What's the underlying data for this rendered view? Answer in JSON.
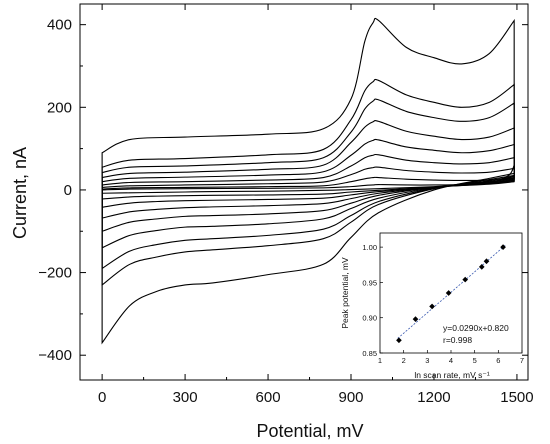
{
  "chart_data": [
    {
      "type": "line",
      "title": "",
      "xlabel": "Potential, mV",
      "ylabel": "Current, nA",
      "xlim": [
        -80,
        1540
      ],
      "ylim": [
        -460,
        450
      ],
      "xticks": [
        "0",
        "300",
        "600",
        "900",
        "1200",
        "1500"
      ],
      "yticks": [
        "400",
        "200",
        "0",
        "−200",
        "−400"
      ],
      "xtick_values": [
        0,
        300,
        600,
        900,
        1200,
        1500
      ],
      "ytick_values": [
        400,
        200,
        0,
        -200,
        -400
      ],
      "series": [
        {
          "forward": [
            [
              0,
              90
            ],
            [
              100,
              122
            ],
            [
              300,
              128
            ],
            [
              600,
              135
            ],
            [
              800,
              148
            ],
            [
              900,
              220
            ],
            [
              950,
              360
            ],
            [
              980,
              405
            ],
            [
              1000,
              410
            ],
            [
              1100,
              345
            ],
            [
              1200,
              320
            ],
            [
              1300,
              305
            ],
            [
              1400,
              330
            ],
            [
              1490,
              410
            ]
          ],
          "reverse": [
            [
              1490,
              40
            ],
            [
              1400,
              28
            ],
            [
              1200,
              0
            ],
            [
              1000,
              -55
            ],
            [
              900,
              -115
            ],
            [
              800,
              -180
            ],
            [
              600,
              -205
            ],
            [
              400,
              -225
            ],
            [
              300,
              -230
            ],
            [
              200,
              -245
            ],
            [
              100,
              -280
            ],
            [
              0,
              -370
            ]
          ]
        },
        {
          "forward": [
            [
              0,
              55
            ],
            [
              100,
              72
            ],
            [
              300,
              76
            ],
            [
              600,
              85
            ],
            [
              800,
              98
            ],
            [
              900,
              170
            ],
            [
              950,
              240
            ],
            [
              980,
              262
            ],
            [
              1000,
              265
            ],
            [
              1100,
              230
            ],
            [
              1200,
              212
            ],
            [
              1300,
              200
            ],
            [
              1400,
              212
            ],
            [
              1490,
              255
            ]
          ],
          "reverse": [
            [
              1490,
              35
            ],
            [
              1400,
              25
            ],
            [
              1200,
              3
            ],
            [
              1000,
              -35
            ],
            [
              900,
              -78
            ],
            [
              800,
              -118
            ],
            [
              600,
              -135
            ],
            [
              400,
              -145
            ],
            [
              300,
              -150
            ],
            [
              200,
              -162
            ],
            [
              100,
              -180
            ],
            [
              0,
              -230
            ]
          ]
        },
        {
          "forward": [
            [
              0,
              42
            ],
            [
              100,
              55
            ],
            [
              300,
              58
            ],
            [
              600,
              66
            ],
            [
              800,
              78
            ],
            [
              900,
              140
            ],
            [
              950,
              196
            ],
            [
              980,
              215
            ],
            [
              1000,
              218
            ],
            [
              1100,
              190
            ],
            [
              1200,
              175
            ],
            [
              1300,
              166
            ],
            [
              1400,
              175
            ],
            [
              1490,
              210
            ]
          ],
          "reverse": [
            [
              1490,
              33
            ],
            [
              1400,
              22
            ],
            [
              1200,
              4
            ],
            [
              1000,
              -28
            ],
            [
              900,
              -62
            ],
            [
              800,
              -95
            ],
            [
              600,
              -110
            ],
            [
              400,
              -118
            ],
            [
              300,
              -122
            ],
            [
              200,
              -132
            ],
            [
              100,
              -148
            ],
            [
              0,
              -190
            ]
          ]
        },
        {
          "forward": [
            [
              0,
              30
            ],
            [
              100,
              40
            ],
            [
              300,
              43
            ],
            [
              600,
              50
            ],
            [
              800,
              60
            ],
            [
              900,
              115
            ],
            [
              950,
              152
            ],
            [
              980,
              165
            ],
            [
              1000,
              166
            ],
            [
              1100,
              142
            ],
            [
              1200,
              130
            ],
            [
              1300,
              122
            ],
            [
              1400,
              128
            ],
            [
              1490,
              150
            ]
          ],
          "reverse": [
            [
              1490,
              30
            ],
            [
              1400,
              20
            ],
            [
              1200,
              5
            ],
            [
              1000,
              -20
            ],
            [
              900,
              -45
            ],
            [
              800,
              -70
            ],
            [
              600,
              -82
            ],
            [
              400,
              -88
            ],
            [
              300,
              -90
            ],
            [
              200,
              -98
            ],
            [
              100,
              -110
            ],
            [
              0,
              -140
            ]
          ]
        },
        {
          "forward": [
            [
              0,
              20
            ],
            [
              100,
              28
            ],
            [
              300,
              31
            ],
            [
              600,
              36
            ],
            [
              800,
              44
            ],
            [
              900,
              84
            ],
            [
              950,
              111
            ],
            [
              980,
              120
            ],
            [
              1000,
              121
            ],
            [
              1100,
              104
            ],
            [
              1200,
              96
            ],
            [
              1300,
              90
            ],
            [
              1400,
              95
            ],
            [
              1490,
              110
            ]
          ],
          "reverse": [
            [
              1490,
              28
            ],
            [
              1400,
              19
            ],
            [
              1200,
              6
            ],
            [
              1000,
              -13
            ],
            [
              900,
              -32
            ],
            [
              800,
              -50
            ],
            [
              600,
              -58
            ],
            [
              400,
              -62
            ],
            [
              300,
              -64
            ],
            [
              200,
              -70
            ],
            [
              100,
              -78
            ],
            [
              0,
              -100
            ]
          ]
        },
        {
          "forward": [
            [
              0,
              12
            ],
            [
              100,
              18
            ],
            [
              300,
              20
            ],
            [
              600,
              24
            ],
            [
              800,
              30
            ],
            [
              900,
              58
            ],
            [
              950,
              78
            ],
            [
              980,
              84
            ],
            [
              1000,
              85
            ],
            [
              1100,
              72
            ],
            [
              1200,
              66
            ],
            [
              1300,
              63
            ],
            [
              1400,
              66
            ],
            [
              1490,
              78
            ]
          ],
          "reverse": [
            [
              1490,
              26
            ],
            [
              1400,
              17
            ],
            [
              1200,
              6
            ],
            [
              1000,
              -8
            ],
            [
              900,
              -21
            ],
            [
              800,
              -33
            ],
            [
              600,
              -38
            ],
            [
              400,
              -41
            ],
            [
              300,
              -43
            ],
            [
              200,
              -47
            ],
            [
              100,
              -53
            ],
            [
              0,
              -68
            ]
          ]
        },
        {
          "forward": [
            [
              0,
              6
            ],
            [
              100,
              10
            ],
            [
              300,
              12
            ],
            [
              600,
              15
            ],
            [
              800,
              19
            ],
            [
              900,
              37
            ],
            [
              950,
              50
            ],
            [
              980,
              54
            ],
            [
              1000,
              55
            ],
            [
              1100,
              47
            ],
            [
              1200,
              43
            ],
            [
              1300,
              41
            ],
            [
              1400,
              43
            ],
            [
              1490,
              52
            ]
          ],
          "reverse": [
            [
              1490,
              24
            ],
            [
              1400,
              16
            ],
            [
              1200,
              7
            ],
            [
              1000,
              -4
            ],
            [
              900,
              -12
            ],
            [
              800,
              -20
            ],
            [
              600,
              -23
            ],
            [
              400,
              -25
            ],
            [
              300,
              -26
            ],
            [
              200,
              -28
            ],
            [
              100,
              -32
            ],
            [
              0,
              -42
            ]
          ]
        },
        {
          "forward": [
            [
              0,
              2
            ],
            [
              100,
              5
            ],
            [
              300,
              6
            ],
            [
              600,
              8
            ],
            [
              800,
              10
            ],
            [
              900,
              20
            ],
            [
              950,
              27
            ],
            [
              980,
              30
            ],
            [
              1000,
              30
            ],
            [
              1100,
              26
            ],
            [
              1200,
              24
            ],
            [
              1300,
              23
            ],
            [
              1400,
              24
            ],
            [
              1490,
              30
            ]
          ],
          "reverse": [
            [
              1490,
              22
            ],
            [
              1400,
              15
            ],
            [
              1200,
              7
            ],
            [
              1000,
              -1
            ],
            [
              900,
              -5
            ],
            [
              800,
              -10
            ],
            [
              600,
              -12
            ],
            [
              400,
              -13
            ],
            [
              300,
              -14
            ],
            [
              200,
              -15
            ],
            [
              100,
              -17
            ],
            [
              0,
              -22
            ]
          ]
        },
        {
          "forward": [
            [
              0,
              0
            ],
            [
              100,
              2
            ],
            [
              300,
              3
            ],
            [
              600,
              4
            ],
            [
              800,
              5
            ],
            [
              900,
              8
            ],
            [
              950,
              11
            ],
            [
              980,
              12
            ],
            [
              1000,
              13
            ],
            [
              1100,
              12
            ],
            [
              1200,
              12
            ],
            [
              1300,
              13
            ],
            [
              1400,
              17
            ],
            [
              1470,
              35
            ],
            [
              1490,
              60
            ]
          ],
          "reverse": [
            [
              1490,
              20
            ],
            [
              1400,
              14
            ],
            [
              1200,
              8
            ],
            [
              1000,
              3
            ],
            [
              900,
              1
            ],
            [
              800,
              -1
            ],
            [
              600,
              -3
            ],
            [
              400,
              -4
            ],
            [
              300,
              -5
            ],
            [
              200,
              -6
            ],
            [
              100,
              -7
            ],
            [
              0,
              -8
            ]
          ]
        }
      ]
    },
    {
      "type": "scatter",
      "title": "",
      "xlabel": "ln scan rate, mV s⁻¹",
      "ylabel": "Peak potential, mV",
      "xlim": [
        1,
        7
      ],
      "ylim": [
        0.85,
        1.02
      ],
      "xticks": [
        "1",
        "2",
        "3",
        "4",
        "5",
        "6",
        "7"
      ],
      "yticks": [
        "1.00",
        "0.95",
        "0.90",
        "0.85"
      ],
      "xtick_values": [
        1,
        2,
        3,
        4,
        5,
        6,
        7
      ],
      "ytick_values": [
        1.0,
        0.95,
        0.9,
        0.85
      ],
      "points": {
        "x": [
          1.8,
          2.5,
          3.2,
          3.9,
          4.6,
          5.3,
          5.5,
          6.2
        ],
        "y": [
          0.868,
          0.898,
          0.916,
          0.935,
          0.954,
          0.972,
          0.98,
          1.0
        ]
      },
      "fit": {
        "slope": 0.029,
        "intercept": 0.82,
        "x_range": [
          1.75,
          6.3
        ]
      },
      "annotation": [
        "y=0.0290x+0.820",
        "r=0.998"
      ]
    }
  ]
}
